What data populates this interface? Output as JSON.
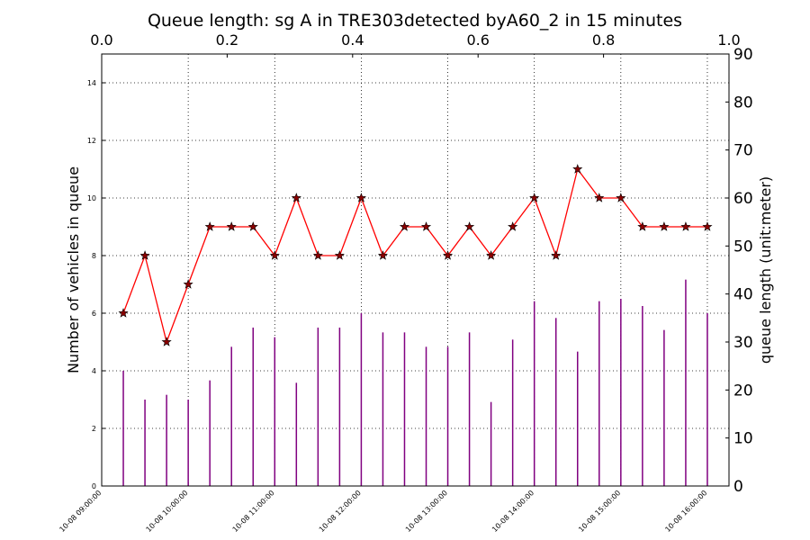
{
  "chart_data": {
    "type": "line",
    "title": "Queue length: sg A in TRE303detected byA60_2 in 15 minutes",
    "ylabel": "Number of vehicles in queue",
    "y2label": "queue length (unit:meter)",
    "x": [
      "10-08 09:15:00",
      "10-08 09:30:00",
      "10-08 09:45:00",
      "10-08 10:00:00",
      "10-08 10:15:00",
      "10-08 10:30:00",
      "10-08 10:45:00",
      "10-08 11:00:00",
      "10-08 11:15:00",
      "10-08 11:30:00",
      "10-08 11:45:00",
      "10-08 12:00:00",
      "10-08 12:15:00",
      "10-08 12:30:00",
      "10-08 12:45:00",
      "10-08 13:00:00",
      "10-08 13:15:00",
      "10-08 13:30:00",
      "10-08 13:45:00",
      "10-08 14:00:00",
      "10-08 14:15:00",
      "10-08 14:30:00",
      "10-08 14:45:00",
      "10-08 15:00:00",
      "10-08 15:15:00",
      "10-08 15:30:00",
      "10-08 15:45:00",
      "10-08 16:00:00"
    ],
    "series": [
      {
        "type": "line",
        "color": "#ff0000",
        "marker_color": "#8b0000",
        "values": [
          6,
          8,
          5,
          7,
          9,
          9,
          9,
          8,
          10,
          8,
          8,
          10,
          8,
          9,
          9,
          8,
          9,
          8,
          9,
          10,
          8,
          11,
          10,
          10,
          9,
          9,
          9,
          9
        ]
      },
      {
        "type": "bar",
        "axis": "y2",
        "color": "#800080",
        "values": [
          24,
          18,
          19,
          18,
          22,
          29,
          33,
          31,
          21.5,
          33,
          33,
          36,
          32,
          32,
          29,
          29,
          32,
          17.5,
          30.5,
          38.5,
          35,
          28,
          38.5,
          39,
          37.5,
          32.5,
          43,
          36
        ]
      }
    ],
    "xlim": [
      "10-08 09:00:00",
      "10-08 16:15:00"
    ],
    "xticks": [
      "10-08 09:00:00",
      "10-08 10:00:00",
      "10-08 11:00:00",
      "10-08 12:00:00",
      "10-08 13:00:00",
      "10-08 14:00:00",
      "10-08 15:00:00",
      "10-08 16:00:00"
    ],
    "ylim": [
      0,
      15
    ],
    "yticks": [
      0,
      2,
      4,
      6,
      8,
      10,
      12,
      14
    ],
    "y2lim": [
      0,
      90
    ],
    "y2ticks": [
      0,
      10,
      20,
      30,
      40,
      50,
      60,
      70,
      80,
      90
    ],
    "x2lim": [
      0,
      1
    ],
    "x2ticks": [
      {
        "value": 0,
        "label": "0.0"
      },
      {
        "value": 0.2,
        "label": "0.2"
      },
      {
        "value": 0.4,
        "label": "0.4"
      },
      {
        "value": 0.6,
        "label": "0.6"
      },
      {
        "value": 0.8,
        "label": "0.8"
      },
      {
        "value": 1,
        "label": "1.0"
      }
    ],
    "grid": true
  }
}
